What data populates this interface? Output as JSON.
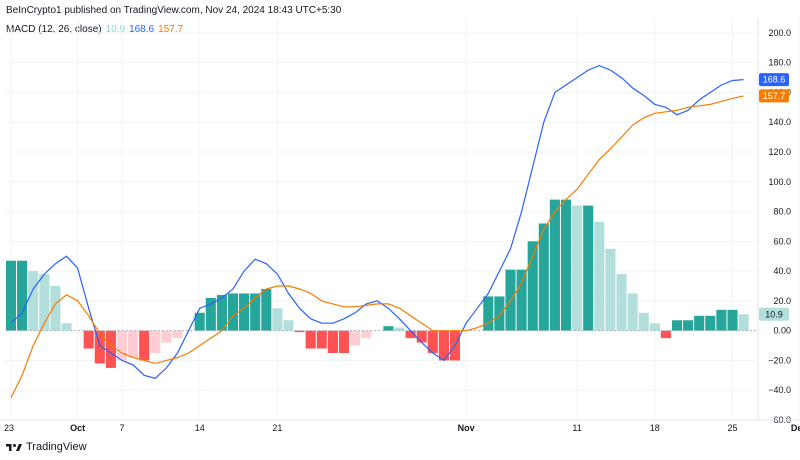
{
  "header": {
    "published": "BeInCrypto1 published on TradingView.com, Nov 24, 2024 18:43 UTC+5:30"
  },
  "legend": {
    "indicator": "MACD (12, 26, close)",
    "hist_value": "10.9",
    "macd_value": "168.6",
    "signal_value": "157.7"
  },
  "footer": {
    "brand": "TradingView",
    "logo_icon": "tradingview-logo-icon"
  },
  "colors": {
    "macd": "#2962ff",
    "signal": "#f57c00",
    "hist_pos_strong": "#26a69a",
    "hist_pos_weak": "#b2dfdb",
    "hist_neg_strong": "#ff5252",
    "hist_neg_weak": "#ffcdd2"
  },
  "chart_data": {
    "type": "bar",
    "title": "",
    "ylim": [
      -60,
      210
    ],
    "y_ticks": [
      -60,
      -40,
      -20,
      0,
      20,
      40,
      60,
      80,
      100,
      120,
      140,
      160,
      180,
      200
    ],
    "y_tick_labels": [
      "−60.0",
      "−40.0",
      "−20.0",
      "0.00",
      "20.0",
      "40.0",
      "60.0",
      "80.0",
      "100.0",
      "120.0",
      "140.0",
      "160.0",
      "180.0",
      "200.0"
    ],
    "x_ticks": [
      {
        "label": "23",
        "index": 0,
        "bold": false
      },
      {
        "label": "Oct",
        "index": 6,
        "bold": true
      },
      {
        "label": "7",
        "index": 10,
        "bold": false
      },
      {
        "label": "14",
        "index": 17,
        "bold": false
      },
      {
        "label": "21",
        "index": 24,
        "bold": false
      },
      {
        "label": "Nov",
        "index": 41,
        "bold": true
      },
      {
        "label": "11",
        "index": 51,
        "bold": false
      },
      {
        "label": "18",
        "index": 58,
        "bold": false
      },
      {
        "label": "25",
        "index": 65,
        "bold": false
      },
      {
        "label": "Dec",
        "index": 71,
        "bold": true
      }
    ],
    "series": [
      {
        "name": "Histogram",
        "values": [
          47,
          47,
          40,
          38,
          30,
          5,
          0,
          -12,
          -22,
          -25,
          -20,
          -18,
          -20,
          -15,
          -8,
          -5,
          0,
          12,
          22,
          24,
          25,
          25,
          25,
          28,
          15,
          7,
          -1,
          -12,
          -12,
          -15,
          -15,
          -10,
          -5,
          0,
          3,
          2,
          -5,
          -8,
          -15,
          -20,
          -20,
          0,
          0,
          23,
          23,
          41,
          41,
          60,
          72,
          88,
          88,
          84,
          84,
          73,
          55,
          38,
          25,
          12,
          5,
          -5,
          7,
          7,
          10,
          10,
          14,
          14,
          11
        ]
      },
      {
        "name": "MACD",
        "values": [
          5,
          12,
          28,
          38,
          45,
          50,
          42,
          15,
          -10,
          -15,
          -20,
          -23,
          -30,
          -32,
          -25,
          -15,
          0,
          15,
          18,
          22,
          28,
          40,
          48,
          45,
          38,
          25,
          15,
          8,
          5,
          5,
          8,
          12,
          18,
          20,
          15,
          8,
          0,
          -8,
          -15,
          -20,
          -10,
          5,
          15,
          25,
          40,
          55,
          80,
          110,
          140,
          160,
          165,
          170,
          175,
          178,
          175,
          170,
          163,
          158,
          152,
          150,
          145,
          148,
          155,
          160,
          165,
          168,
          168.6
        ]
      },
      {
        "name": "Signal",
        "values": [
          -45,
          -30,
          -10,
          5,
          18,
          24,
          20,
          10,
          -2,
          -10,
          -15,
          -18,
          -20,
          -22,
          -20,
          -18,
          -15,
          -10,
          -5,
          0,
          10,
          15,
          22,
          28,
          30,
          30,
          28,
          25,
          20,
          18,
          16,
          16,
          17,
          18,
          18,
          15,
          10,
          5,
          0,
          0,
          0,
          0,
          2,
          5,
          10,
          20,
          32,
          50,
          68,
          80,
          88,
          95,
          105,
          115,
          122,
          130,
          138,
          143,
          146,
          147,
          148,
          150,
          151,
          152,
          154,
          156,
          157.7
        ]
      }
    ],
    "zero_line": true,
    "legend_placement": "top-left"
  }
}
